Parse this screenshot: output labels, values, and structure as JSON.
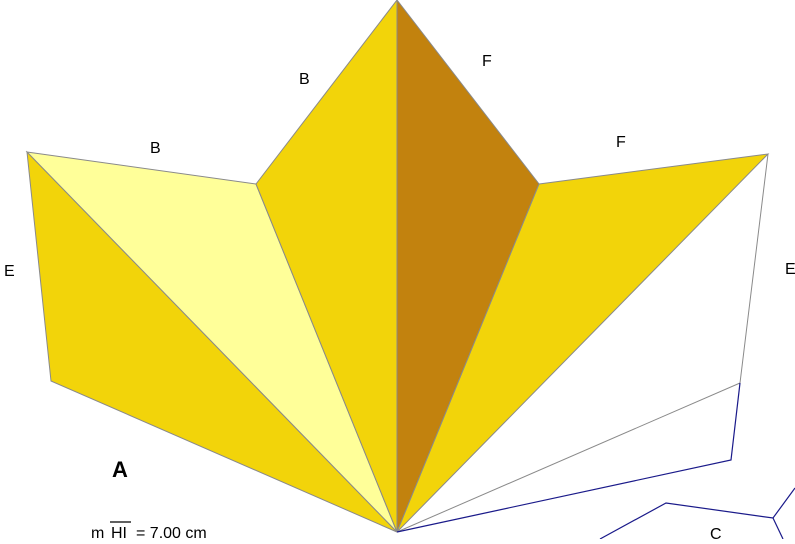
{
  "figure": {
    "label_main": "A",
    "labels": {
      "left_edge": "E",
      "left_top_edge": "B",
      "upper_left_edge": "B",
      "upper_right_edge": "F",
      "right_top_edge": "F",
      "right_edge": "E",
      "bottom_right": "C"
    },
    "measurement": {
      "prefix": "m",
      "segment": "HI",
      "value": "= 7.00 cm"
    }
  },
  "colors": {
    "gold": "#F2D40A",
    "pale_yellow": "#FFFF99",
    "dark_gold": "#C2820E",
    "edge": "#8a8a8a",
    "blue_line": "#1a1a8a"
  }
}
